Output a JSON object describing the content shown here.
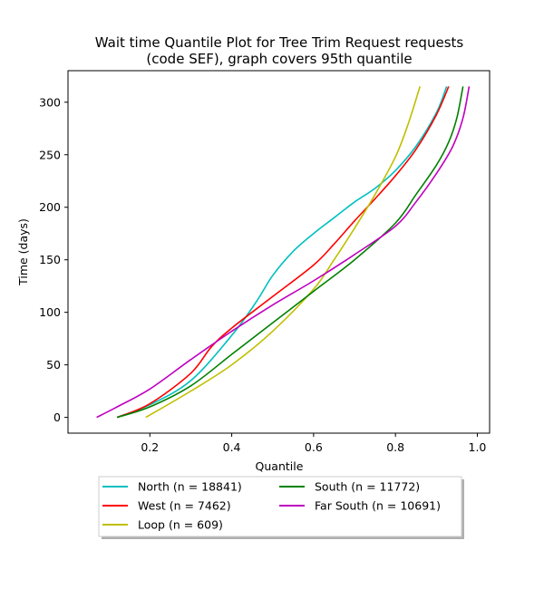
{
  "chart_data": {
    "type": "line",
    "title_line1": "Wait time Quantile Plot for Tree Trim Request  requests",
    "title_line2": "(code SEF), graph covers 95th quantile",
    "xlabel": "Quantile",
    "ylabel": "Time (days)",
    "xlim": [
      0.0,
      1.03
    ],
    "ylim": [
      -15,
      330
    ],
    "xticks": [
      0.2,
      0.4,
      0.6,
      0.8,
      1.0
    ],
    "xtick_labels": [
      "0.2",
      "0.4",
      "0.6",
      "0.8",
      "1.0"
    ],
    "yticks": [
      0,
      50,
      100,
      150,
      200,
      250,
      300
    ],
    "ytick_labels": [
      "0",
      "50",
      "100",
      "150",
      "200",
      "250",
      "300"
    ],
    "grid": false,
    "legend_position": "below",
    "legend_columns": 2,
    "series": [
      {
        "name": "North (n = 18841)",
        "color": "#00bfbf",
        "points": [
          [
            0.12,
            0
          ],
          [
            0.2,
            12
          ],
          [
            0.3,
            35
          ],
          [
            0.4,
            78
          ],
          [
            0.46,
            110
          ],
          [
            0.5,
            135
          ],
          [
            0.55,
            158
          ],
          [
            0.6,
            175
          ],
          [
            0.65,
            190
          ],
          [
            0.7,
            205
          ],
          [
            0.75,
            218
          ],
          [
            0.8,
            235
          ],
          [
            0.85,
            258
          ],
          [
            0.9,
            290
          ],
          [
            0.925,
            315
          ]
        ]
      },
      {
        "name": "West (n = 7462)",
        "color": "#ff0000",
        "points": [
          [
            0.12,
            0
          ],
          [
            0.2,
            13
          ],
          [
            0.3,
            42
          ],
          [
            0.35,
            67
          ],
          [
            0.4,
            85
          ],
          [
            0.5,
            115
          ],
          [
            0.6,
            145
          ],
          [
            0.65,
            165
          ],
          [
            0.7,
            187
          ],
          [
            0.75,
            208
          ],
          [
            0.8,
            230
          ],
          [
            0.85,
            255
          ],
          [
            0.9,
            288
          ],
          [
            0.93,
            315
          ]
        ]
      },
      {
        "name": "Loop (n = 609)",
        "color": "#bfbf00",
        "points": [
          [
            0.19,
            0
          ],
          [
            0.3,
            25
          ],
          [
            0.4,
            50
          ],
          [
            0.5,
            82
          ],
          [
            0.6,
            122
          ],
          [
            0.65,
            150
          ],
          [
            0.7,
            180
          ],
          [
            0.75,
            212
          ],
          [
            0.8,
            248
          ],
          [
            0.83,
            278
          ],
          [
            0.86,
            315
          ]
        ]
      },
      {
        "name": "South (n = 11772)",
        "color": "#008000",
        "points": [
          [
            0.12,
            0
          ],
          [
            0.2,
            10
          ],
          [
            0.3,
            30
          ],
          [
            0.4,
            60
          ],
          [
            0.5,
            90
          ],
          [
            0.6,
            120
          ],
          [
            0.7,
            150
          ],
          [
            0.8,
            185
          ],
          [
            0.85,
            212
          ],
          [
            0.9,
            240
          ],
          [
            0.93,
            262
          ],
          [
            0.95,
            285
          ],
          [
            0.965,
            315
          ]
        ]
      },
      {
        "name": "Far South (n = 10691)",
        "color": "#bf00bf",
        "points": [
          [
            0.07,
            0
          ],
          [
            0.12,
            10
          ],
          [
            0.2,
            27
          ],
          [
            0.3,
            55
          ],
          [
            0.4,
            82
          ],
          [
            0.5,
            107
          ],
          [
            0.6,
            130
          ],
          [
            0.7,
            155
          ],
          [
            0.8,
            182
          ],
          [
            0.85,
            205
          ],
          [
            0.9,
            232
          ],
          [
            0.94,
            258
          ],
          [
            0.965,
            285
          ],
          [
            0.98,
            315
          ]
        ]
      }
    ]
  }
}
